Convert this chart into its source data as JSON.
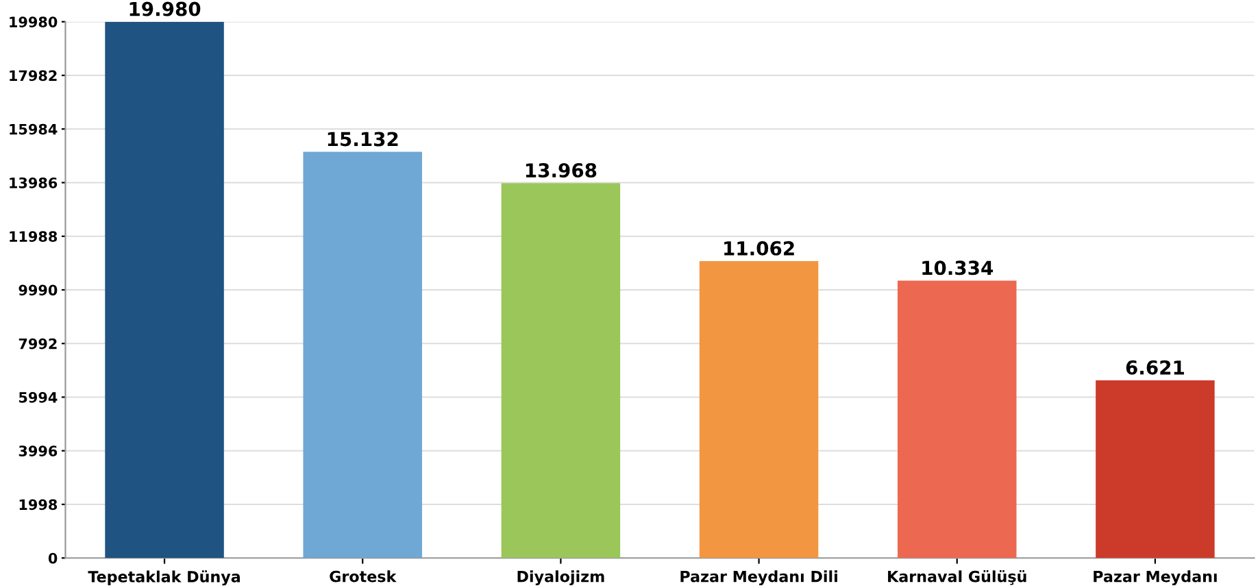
{
  "chart_data": {
    "type": "bar",
    "categories": [
      "Tepetaklak Dünya",
      "Grotesk",
      "Diyalojizm",
      "Pazar Meydanı Dili",
      "Karnaval Gülüşü",
      "Pazar Meydanı"
    ],
    "values": [
      19980,
      15132,
      13968,
      11062,
      10334,
      6621
    ],
    "value_labels": [
      "19.980",
      "15.132",
      "13.968",
      "11.062",
      "10.334",
      "6.621"
    ],
    "colors": [
      "#1f5382",
      "#6fa7d5",
      "#9bc65a",
      "#f39641",
      "#ed6850",
      "#cc3a29"
    ],
    "ylim": [
      0,
      19980
    ],
    "yticks": [
      0,
      1998,
      3996,
      5994,
      7992,
      9990,
      11988,
      13986,
      15984,
      17982,
      19980
    ],
    "grid": "y",
    "legend": false
  }
}
